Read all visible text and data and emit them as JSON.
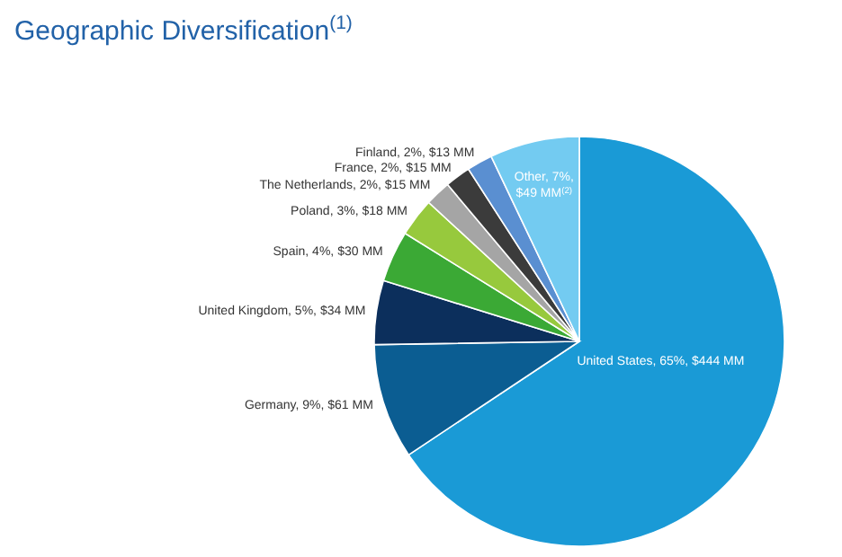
{
  "chart_data": {
    "type": "pie",
    "title": "Geographic Diversification$^{(1)}$",
    "categories": [
      "United States",
      "Germany",
      "United Kingdom",
      "Spain",
      "Poland",
      "The Netherlands",
      "France",
      "Finland",
      "Other"
    ],
    "values": [
      65,
      9,
      5,
      4,
      3,
      2,
      2,
      2,
      7
    ],
    "value_labels": [
      "65%, $444 MM",
      "9%, $61 MM",
      "5%, $34 MM",
      "4%, $30 MM",
      "3%, $18 MM",
      "2%, $15 MM",
      "2%, $15 MM",
      "2%, $13 MM",
      "7%, $49 MM$^{(2)}$"
    ],
    "colors": [
      "#1a9ad6",
      "#0b5d92",
      "#0c2f5c",
      "#3ba935",
      "#97c93d",
      "#a5a5a5",
      "#3b3b3b",
      "#5a8fd1",
      "#73cbf1"
    ]
  }
}
